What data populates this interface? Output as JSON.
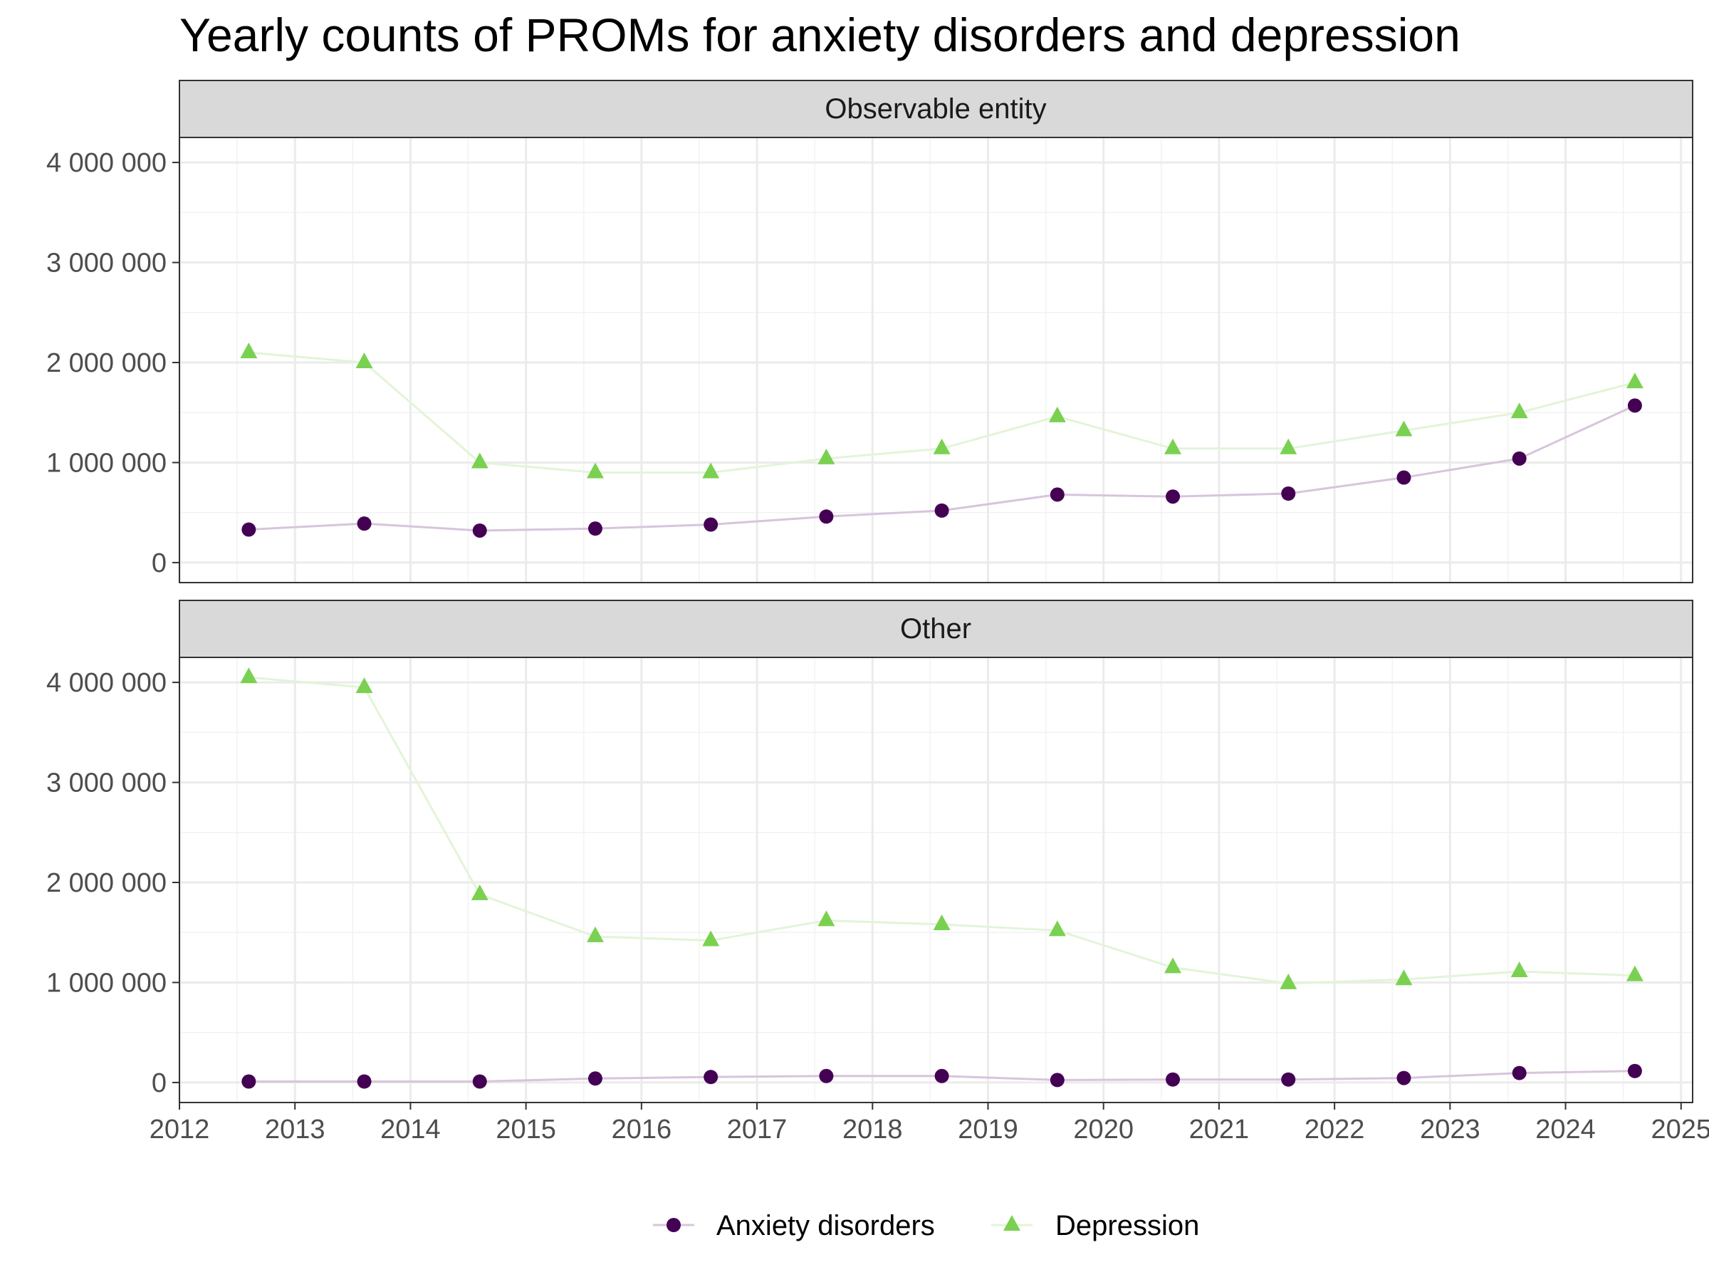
{
  "chart_data": {
    "type": "line",
    "title": "Yearly counts of PROMs for anxiety disorders and depression",
    "xlabel": "",
    "ylabel": "",
    "x_ticks": [
      "2012",
      "2013",
      "2014",
      "2015",
      "2016",
      "2017",
      "2018",
      "2019",
      "2020",
      "2021",
      "2022",
      "2023",
      "2024",
      "2025"
    ],
    "y_ticks": [
      "0",
      "1 000 000",
      "2 000 000",
      "3 000 000",
      "4 000 000"
    ],
    "xlim": [
      2012,
      2025.1
    ],
    "ylim": [
      -200000,
      4250000
    ],
    "grid": true,
    "legend_position": "bottom",
    "x": [
      2012.6,
      2013.6,
      2014.6,
      2015.6,
      2016.6,
      2017.6,
      2018.6,
      2019.6,
      2020.6,
      2021.6,
      2022.6,
      2023.6,
      2024.6
    ],
    "series_styles": [
      {
        "name": "Anxiety disorders",
        "marker": "circle",
        "color": "#440154",
        "line_color": "#d8c4dc"
      },
      {
        "name": "Depression",
        "marker": "triangle",
        "color": "#7ad151",
        "line_color": "#e3f4d8"
      }
    ],
    "panels": [
      {
        "strip": "Observable entity",
        "series": [
          {
            "name": "Anxiety disorders",
            "values": [
              330000,
              390000,
              320000,
              340000,
              380000,
              460000,
              520000,
              680000,
              660000,
              690000,
              850000,
              1040000,
              1570000
            ]
          },
          {
            "name": "Depression",
            "values": [
              2100000,
              2000000,
              1000000,
              900000,
              900000,
              1040000,
              1140000,
              1460000,
              1140000,
              1140000,
              1320000,
              1500000,
              1800000
            ]
          }
        ]
      },
      {
        "strip": "Other",
        "series": [
          {
            "name": "Anxiety disorders",
            "values": [
              10000,
              10000,
              10000,
              40000,
              55000,
              65000,
              65000,
              25000,
              30000,
              30000,
              45000,
              95000,
              115000
            ]
          },
          {
            "name": "Depression",
            "values": [
              4050000,
              3950000,
              1880000,
              1460000,
              1420000,
              1620000,
              1580000,
              1520000,
              1150000,
              990000,
              1030000,
              1110000,
              1070000
            ]
          }
        ]
      }
    ]
  }
}
